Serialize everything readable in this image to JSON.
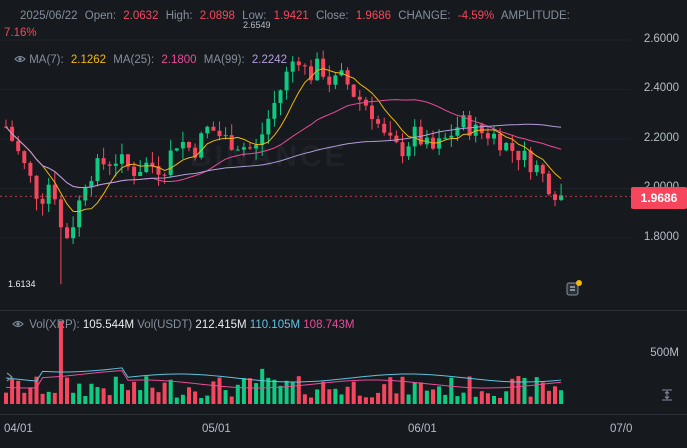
{
  "header": {
    "date": "2025/06/22",
    "open_label": "Open:",
    "open_value": "2.0632",
    "high_label": "High:",
    "high_value": "2.0898",
    "low_label": "Low:",
    "low_value": "1.9421",
    "close_label": "Close:",
    "close_value": "1.9686",
    "change_label": "CHANGE:",
    "change_value": "-4.59%",
    "amplitude_label": "AMPLITUDE:",
    "amplitude_value": "7.16%"
  },
  "ma": {
    "ma7_label": "MA(7):",
    "ma7_value": "2.1262",
    "ma25_label": "MA(25):",
    "ma25_value": "2.1800",
    "ma99_label": "MA(99):",
    "ma99_value": "2.2242"
  },
  "volume": {
    "label": "Vol(XRP):",
    "xrp_value": "105.544M",
    "usdt_label": "Vol(USDT)",
    "usdt_value": "212.415M",
    "ma1_value": "110.105M",
    "ma2_value": "108.743M",
    "axis_label": "500M"
  },
  "price_axis": [
    "2.6000",
    "2.4000",
    "2.2000",
    "2.0000",
    "1.8000"
  ],
  "current_price": "1.9686",
  "markers": {
    "low": "1.6134",
    "high": "2.6549"
  },
  "watermark": "BINANCE",
  "dates": [
    "04/01",
    "05/01",
    "06/01",
    "07/0"
  ],
  "colors": {
    "up": "#0ecb81",
    "down": "#f6465d",
    "ma7": "#f0b90b",
    "ma25": "#ea4b9a",
    "ma99": "#b39ddb"
  },
  "icons": [
    "eye-icon",
    "notification-icon",
    "indicator-icon",
    "scale-icon"
  ]
}
